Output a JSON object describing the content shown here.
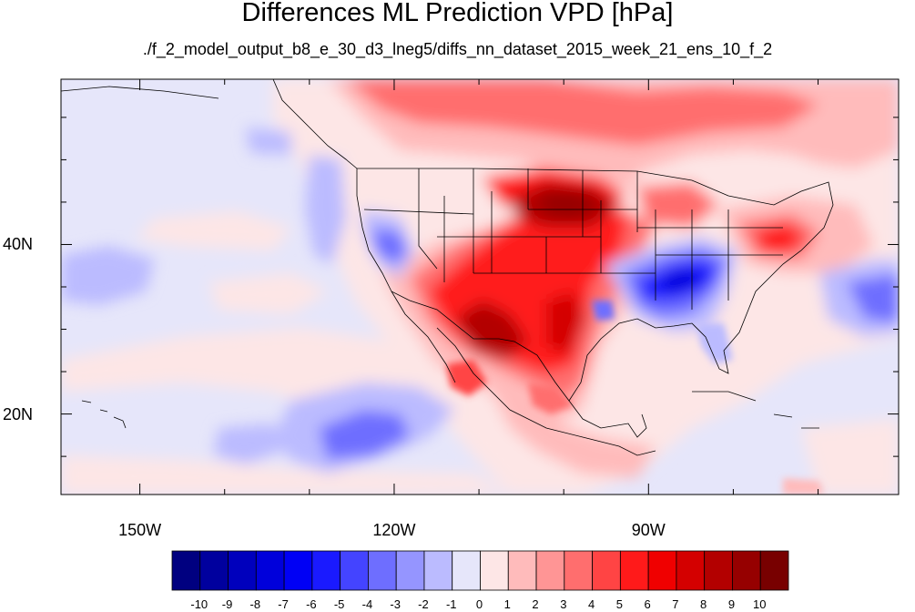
{
  "title": "Differences ML Prediction VPD [hPa]",
  "subtitle": "./f_2_model_output_b8_e_30_d3_lneg5/diffs_nn_dataset_2015_week_21_ens_10_f_2",
  "map": {
    "lat_range": [
      10.5,
      59.5
    ],
    "lon_range": [
      -159.3,
      -60.5
    ],
    "lat_ticks": [
      {
        "value": 40,
        "label": "40N"
      },
      {
        "value": 20,
        "label": "20N"
      }
    ],
    "lon_ticks": [
      {
        "value": -150,
        "label": "150W"
      },
      {
        "value": -120,
        "label": "120W"
      },
      {
        "value": -90,
        "label": "90W"
      }
    ],
    "minor_lat_ticks": [
      15,
      25,
      30,
      35,
      45,
      50,
      55
    ],
    "minor_lon_ticks": [
      -140,
      -130,
      -110,
      -100,
      -80,
      -70
    ]
  },
  "colorbar": {
    "levels": [
      "-10",
      "-9",
      "-8",
      "-7",
      "-6",
      "-5",
      "-4",
      "-3",
      "-2",
      "-1",
      "0",
      "1",
      "2",
      "3",
      "4",
      "5",
      "6",
      "7",
      "8",
      "9",
      "10"
    ],
    "colors": [
      "#000080",
      "#00009e",
      "#0000bd",
      "#0000db",
      "#0000f5",
      "#1a1aff",
      "#4444ff",
      "#6e6eff",
      "#9595ff",
      "#bbbbff",
      "#e6e6fa",
      "#fde6e6",
      "#ffbbbb",
      "#ff9595",
      "#ff6e6e",
      "#ff4444",
      "#ff1a1a",
      "#f00000",
      "#d40000",
      "#b30000",
      "#960000",
      "#780000"
    ]
  }
}
